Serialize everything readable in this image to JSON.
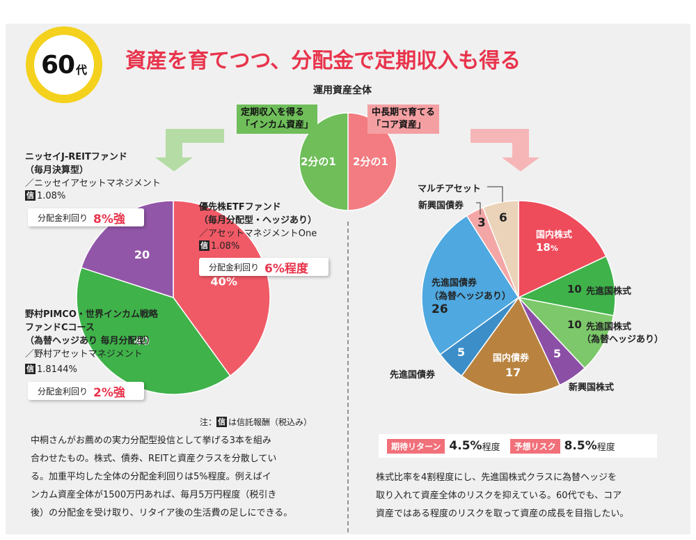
{
  "header": {
    "age_number": "60",
    "age_unit": "代",
    "title": "資産を育てつつ、分配金で定期収入も得る"
  },
  "overview": {
    "title": "運用資産全体",
    "income_box": [
      "定期収入を得る",
      "「インカム資産」"
    ],
    "core_box": [
      "中長期で育てる",
      "「コア資産」"
    ],
    "half_left": "2分の1",
    "half_right": "2分の1",
    "colors": {
      "income": "#6fbe5a",
      "core": "#f27c81"
    }
  },
  "income_funds": {
    "nissay": {
      "name": "ニッセイJ-REITファンド",
      "sub": "（毎月決算型）",
      "company": "／ニッセイアセットマネジメント",
      "fee_icon": "信",
      "fee": "1.08%",
      "yield_label": "分配金利回り",
      "yield_value": "8%強"
    },
    "etf": {
      "name": "優先株ETFファンド",
      "sub": "（毎月分配型・ヘッジあり）",
      "company": "／アセットマネジメントOne",
      "fee_icon": "信",
      "fee": "1.08%",
      "yield_label": "分配金利回り",
      "yield_value": "6%程度"
    },
    "pimco": {
      "name": "野村PIMCO・世界インカム戦略",
      "name2": "ファンドCコース",
      "sub": "（為替ヘッジあり 毎月分配型）",
      "company": "／野村アセットマネジメント",
      "fee_icon": "信",
      "fee": "1.8144%",
      "yield_label": "分配金利回り",
      "yield_value": "2%強"
    },
    "note_prefix": "注：",
    "note_icon": "信",
    "note_text": "は信託報酬（税込み）"
  },
  "core_assets": {
    "labels": {
      "multi_asset": "マルチアセット",
      "em_bonds": "新興国債券",
      "domestic_stocks": "国内株式",
      "domestic_stocks_value": "18",
      "domestic_stocks_pct": "%",
      "dev_stocks": "先進国株式",
      "dev_stocks_value": "10",
      "dev_stocks_hedged_value": "10",
      "dev_stocks_hedged": "先進国株式",
      "dev_stocks_hedged_sub": "（為替ヘッジあり）",
      "em_stocks": "新興国株式",
      "em_stocks_value": "5",
      "domestic_bonds": "国内債券",
      "domestic_bonds_value": "17",
      "dev_bonds": "先進国債券",
      "dev_bonds_value": "5",
      "dev_bonds_hedged": "先進国債券",
      "dev_bonds_hedged_sub": "（為替ヘッジあり）",
      "dev_bonds_hedged_value": "26",
      "em_bonds_value": "3",
      "multi_asset_value": "6"
    },
    "expected_return_tag": "期待リターン",
    "expected_return_value": "4.5%",
    "expected_return_suffix": "程度",
    "risk_tag": "予想リスク",
    "risk_value": "8.5%",
    "risk_suffix": "程度"
  },
  "descriptions": {
    "left": [
      "中桐さんがお薦めの実力分配型投信として挙げる3本を組み",
      "合わせたもの。株式、債券、REITと資産クラスを分散してい",
      "る。加重平均した全体の分配金利回りは5%程度。例えばイ",
      "ンカム資産全体が1500万円あれば、毎月5万円程度（税引き",
      "後）の分配金を受け取り、リタイア後の生活費の足しにできる。"
    ],
    "right": [
      "株式比率を4割程度にし、先進国株式クラスに為替ヘッジを",
      "取り入れて資産全体のリスクを抑えている。60代でも、コア",
      "資産ではある程度のリスクを取って資産の成長を目指したい。"
    ]
  },
  "chart_data": [
    {
      "type": "pie",
      "title": "運用資産全体",
      "categories": [
        "インカム資産",
        "コア資産"
      ],
      "values": [
        50,
        50
      ],
      "colors": [
        "#6fbe5a",
        "#f27c81"
      ]
    },
    {
      "type": "pie",
      "title": "",
      "categories": [
        "優先株ETFファンド",
        "野村PIMCO・世界インカム戦略ファンドCコース",
        "ニッセイJ-REITファンド"
      ],
      "values": [
        40,
        40,
        20
      ],
      "value_labels": [
        "40%",
        "40",
        "20"
      ],
      "colors": [
        "#f05a66",
        "#3fb24a",
        "#9256a8"
      ]
    },
    {
      "type": "pie",
      "title": "",
      "categories": [
        "国内株式",
        "先進国株式",
        "先進国株式（為替ヘッジあり）",
        "新興国株式",
        "国内債券",
        "先進国債券",
        "先進国債券（為替ヘッジあり）",
        "新興国債券",
        "マルチアセット"
      ],
      "values": [
        18,
        10,
        10,
        5,
        17,
        5,
        26,
        3,
        6
      ],
      "colors": [
        "#ee4b5b",
        "#3fb24a",
        "#7cc86a",
        "#8c4fa6",
        "#b9833f",
        "#3c8ec8",
        "#4fa8df",
        "#f4a6a6",
        "#ead3b8"
      ]
    }
  ]
}
